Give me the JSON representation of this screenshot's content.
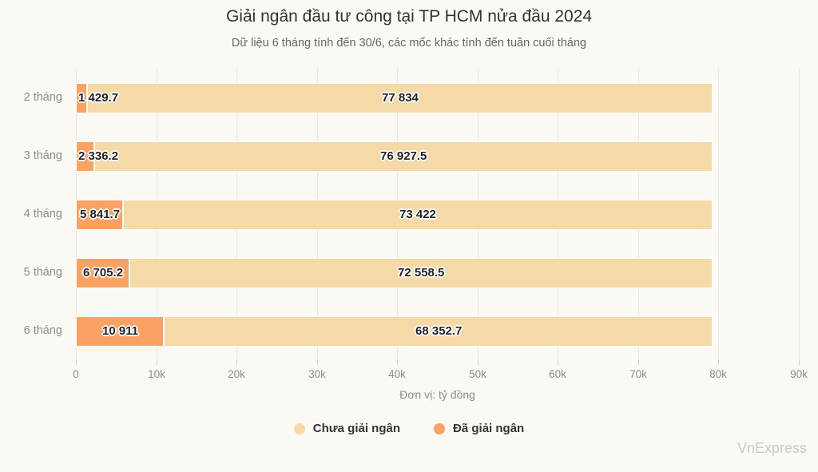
{
  "chart_data": {
    "type": "bar",
    "orientation": "horizontal",
    "stacked": true,
    "title": "Giải ngân đầu tư công tại TP HCM nửa đầu 2024",
    "subtitle": "Dữ liệu 6 tháng tính đến 30/6, các mốc khác tính đến tuần cuối tháng",
    "categories": [
      "2 tháng",
      "3 tháng",
      "4 tháng",
      "5 tháng",
      "6 tháng"
    ],
    "series": [
      {
        "name": "Đã giải ngân",
        "color": "#FAA263",
        "values": [
          1429.7,
          2336.2,
          5841.7,
          6705.2,
          10911
        ],
        "labels": [
          "1 429.7",
          "2 336.2",
          "5 841.7",
          "6 705.2",
          "10 911"
        ]
      },
      {
        "name": "Chưa giải ngân",
        "color": "#F5D9A7",
        "values": [
          77834,
          76927.5,
          73422,
          72558.5,
          68352.7
        ],
        "labels": [
          "77 834",
          "76 927.5",
          "73 422",
          "72 558.5",
          "68 352.7"
        ]
      }
    ],
    "x_ticks": [
      "0",
      "10k",
      "20k",
      "30k",
      "40k",
      "50k",
      "60k",
      "70k",
      "80k",
      "90k"
    ],
    "xlim": [
      0,
      90000
    ],
    "xlabel": "Đơn vị: tỷ đồng",
    "grid": true,
    "legend_position": "bottom",
    "legend": [
      {
        "label": "Chưa giải ngân",
        "color": "#F5D9A7"
      },
      {
        "label": "Đã giải ngân",
        "color": "#FAA263"
      }
    ]
  },
  "watermark": "VnExpress",
  "colors": {
    "background": "#FAF9F4",
    "grid": "#E9E8E3",
    "tick": "#CFCDC8",
    "axis_text": "#8B8B8B",
    "title_text": "#333333",
    "subtitle_text": "#666666",
    "bar_label_text": "#222222",
    "legend_text": "#333333",
    "watermark_text": "#C9C9C9"
  }
}
